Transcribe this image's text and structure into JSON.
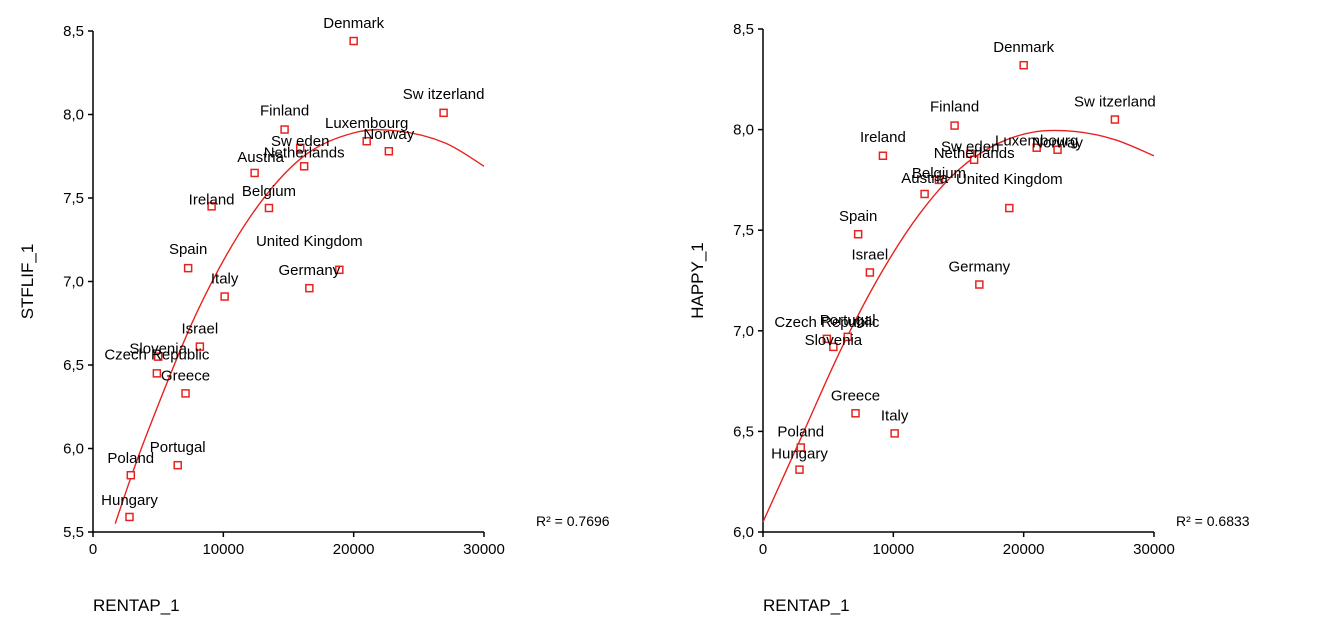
{
  "chart_data": [
    {
      "type": "scatter",
      "xlabel": "RENTAP_1",
      "ylabel": "STFLIF_1",
      "xlim": [
        0,
        30000
      ],
      "ylim": [
        5.5,
        8.5
      ],
      "xticks": [
        "0",
        "10000",
        "20000",
        "30000"
      ],
      "yticks": [
        "5,5",
        "6,0",
        "6,5",
        "7,0",
        "7,5",
        "8,0",
        "8,5"
      ],
      "r_squared": "R² = 0.7696",
      "fit_type": "quadratic",
      "fit_curve": [
        [
          1700,
          5.55
        ],
        [
          4000,
          6.06
        ],
        [
          8000,
          6.82
        ],
        [
          12000,
          7.38
        ],
        [
          16000,
          7.74
        ],
        [
          20000,
          7.89
        ],
        [
          23500,
          7.9
        ],
        [
          27000,
          7.83
        ],
        [
          30000,
          7.69
        ]
      ],
      "points": [
        {
          "label": "Denmark",
          "x": 20000,
          "y": 8.44
        },
        {
          "label": "Sw itzerland",
          "x": 26900,
          "y": 8.01
        },
        {
          "label": "Finland",
          "x": 14700,
          "y": 7.91
        },
        {
          "label": "Sw eden",
          "x": 15900,
          "y": 7.8
        },
        {
          "label": "Luxembourg",
          "x": 21000,
          "y": 7.84
        },
        {
          "label": "Norway",
          "x": 22700,
          "y": 7.78
        },
        {
          "label": "Netherlands",
          "x": 16200,
          "y": 7.69
        },
        {
          "label": "Austria",
          "x": 12400,
          "y": 7.65
        },
        {
          "label": "Ireland",
          "x": 9100,
          "y": 7.45
        },
        {
          "label": "Belgium",
          "x": 13500,
          "y": 7.44
        },
        {
          "label": "United Kingdom",
          "x": 18900,
          "y": 7.07
        },
        {
          "label": "Germany",
          "x": 16600,
          "y": 6.96
        },
        {
          "label": "Spain",
          "x": 7300,
          "y": 7.08
        },
        {
          "label": "Italy",
          "x": 10100,
          "y": 6.91
        },
        {
          "label": "Slovenia",
          "x": 5000,
          "y": 6.55
        },
        {
          "label": "Israel",
          "x": 8200,
          "y": 6.61
        },
        {
          "label": "Czech Republic",
          "x": 4900,
          "y": 6.45
        },
        {
          "label": "Greece",
          "x": 7100,
          "y": 6.33
        },
        {
          "label": "Portugal",
          "x": 6500,
          "y": 5.9
        },
        {
          "label": "Poland",
          "x": 2900,
          "y": 5.84
        },
        {
          "label": "Hungary",
          "x": 2800,
          "y": 5.59
        }
      ]
    },
    {
      "type": "scatter",
      "xlabel": "RENTAP_1",
      "ylabel": "HAPPY_1",
      "xlim": [
        0,
        30000
      ],
      "ylim": [
        6.0,
        8.5
      ],
      "xticks": [
        "0",
        "10000",
        "20000",
        "30000"
      ],
      "yticks": [
        "6,0",
        "6,5",
        "7,0",
        "7,5",
        "8,0",
        "8,5"
      ],
      "r_squared": "R² = 0.6833",
      "fit_type": "quadratic",
      "fit_curve": [
        [
          0,
          6.05
        ],
        [
          3000,
          6.48
        ],
        [
          6000,
          6.91
        ],
        [
          9000,
          7.28
        ],
        [
          12000,
          7.58
        ],
        [
          15000,
          7.8
        ],
        [
          18000,
          7.93
        ],
        [
          21000,
          7.99
        ],
        [
          24000,
          7.99
        ],
        [
          27000,
          7.95
        ],
        [
          30000,
          7.87
        ]
      ],
      "points": [
        {
          "label": "Denmark",
          "x": 20000,
          "y": 8.32
        },
        {
          "label": "Sw itzerland",
          "x": 27000,
          "y": 8.05
        },
        {
          "label": "Finland",
          "x": 14700,
          "y": 8.02
        },
        {
          "label": "Sw eden",
          "x": 15900,
          "y": 7.88
        },
        {
          "label": "Luxembourg",
          "x": 21000,
          "y": 7.91
        },
        {
          "label": "Norway",
          "x": 22600,
          "y": 7.9
        },
        {
          "label": "Netherlands",
          "x": 16200,
          "y": 7.85
        },
        {
          "label": "Ireland",
          "x": 9200,
          "y": 7.87
        },
        {
          "label": "Belgium",
          "x": 13500,
          "y": 7.75
        },
        {
          "label": "Austria",
          "x": 12400,
          "y": 7.68
        },
        {
          "label": "United Kingdom",
          "x": 18900,
          "y": 7.61
        },
        {
          "label": "Spain",
          "x": 7300,
          "y": 7.48
        },
        {
          "label": "Israel",
          "x": 8200,
          "y": 7.29
        },
        {
          "label": "Germany",
          "x": 16600,
          "y": 7.23
        },
        {
          "label": "Czech Republic",
          "x": 4900,
          "y": 6.96
        },
        {
          "label": "Portugal",
          "x": 6500,
          "y": 6.97
        },
        {
          "label": "Slovenia",
          "x": 5400,
          "y": 6.92
        },
        {
          "label": "Greece",
          "x": 7100,
          "y": 6.59
        },
        {
          "label": "Italy",
          "x": 10100,
          "y": 6.49
        },
        {
          "label": "Poland",
          "x": 2900,
          "y": 6.42
        },
        {
          "label": "Hungary",
          "x": 2800,
          "y": 6.31
        }
      ]
    }
  ],
  "colors": {
    "marker": "#e8231f",
    "fit": "#e8231f",
    "axis": "#000000"
  }
}
